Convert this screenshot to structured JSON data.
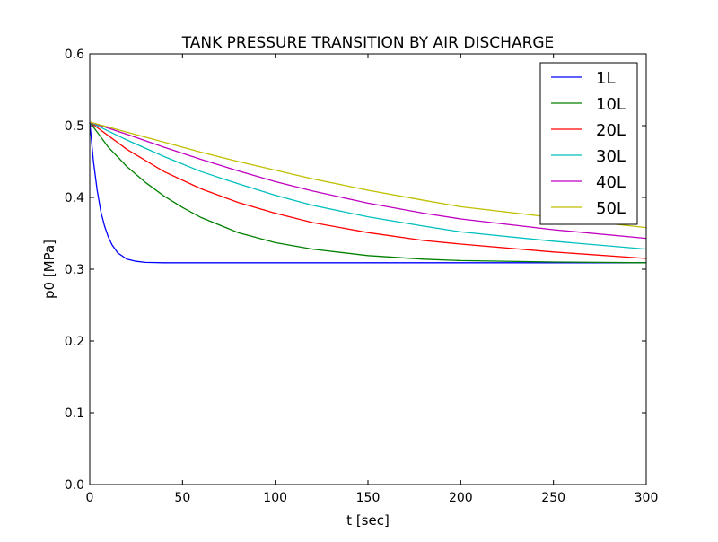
{
  "chart_data": {
    "type": "line",
    "title": "TANK PRESSURE TRANSITION BY AIR DISCHARGE",
    "xlabel": "t [sec]",
    "ylabel": "p0 [MPa]",
    "xlim": [
      0,
      300
    ],
    "ylim": [
      0.0,
      0.6
    ],
    "xticks": [
      "0",
      "50",
      "100",
      "150",
      "200",
      "250",
      "300"
    ],
    "yticks": [
      "0.0",
      "0.1",
      "0.2",
      "0.3",
      "0.4",
      "0.5",
      "0.6"
    ],
    "grid": false,
    "legend_position": "top-right",
    "series": [
      {
        "name": "1L",
        "color": "#0000ff",
        "x": [
          0,
          2,
          4,
          6,
          8,
          10,
          12,
          15,
          20,
          25,
          30,
          40,
          60,
          100,
          150,
          200,
          250,
          300
        ],
        "y": [
          0.505,
          0.45,
          0.41,
          0.38,
          0.36,
          0.345,
          0.334,
          0.323,
          0.314,
          0.311,
          0.3095,
          0.309,
          0.309,
          0.309,
          0.309,
          0.309,
          0.309,
          0.309
        ]
      },
      {
        "name": "10L",
        "color": "#008000",
        "x": [
          0,
          10,
          20,
          30,
          40,
          50,
          60,
          80,
          100,
          120,
          150,
          180,
          200,
          250,
          300
        ],
        "y": [
          0.505,
          0.47,
          0.443,
          0.421,
          0.402,
          0.386,
          0.372,
          0.351,
          0.337,
          0.328,
          0.319,
          0.314,
          0.312,
          0.31,
          0.309
        ]
      },
      {
        "name": "20L",
        "color": "#ff0000",
        "x": [
          0,
          20,
          40,
          60,
          80,
          100,
          120,
          150,
          180,
          200,
          250,
          300
        ],
        "y": [
          0.505,
          0.467,
          0.436,
          0.412,
          0.393,
          0.378,
          0.365,
          0.351,
          0.34,
          0.335,
          0.324,
          0.315
        ]
      },
      {
        "name": "30L",
        "color": "#00bfbf",
        "x": [
          0,
          20,
          40,
          60,
          80,
          100,
          120,
          150,
          180,
          200,
          250,
          300
        ],
        "y": [
          0.505,
          0.48,
          0.457,
          0.436,
          0.419,
          0.403,
          0.389,
          0.373,
          0.36,
          0.352,
          0.339,
          0.328
        ]
      },
      {
        "name": "40L",
        "color": "#bf00bf",
        "x": [
          0,
          20,
          40,
          60,
          80,
          100,
          120,
          150,
          180,
          200,
          250,
          300
        ],
        "y": [
          0.505,
          0.488,
          0.47,
          0.453,
          0.437,
          0.422,
          0.409,
          0.392,
          0.378,
          0.37,
          0.355,
          0.343
        ]
      },
      {
        "name": "50L",
        "color": "#bfbf00",
        "x": [
          0,
          20,
          40,
          60,
          80,
          100,
          120,
          150,
          180,
          200,
          250,
          300
        ],
        "y": [
          0.505,
          0.491,
          0.477,
          0.463,
          0.45,
          0.438,
          0.426,
          0.41,
          0.396,
          0.387,
          0.372,
          0.358
        ]
      }
    ]
  }
}
